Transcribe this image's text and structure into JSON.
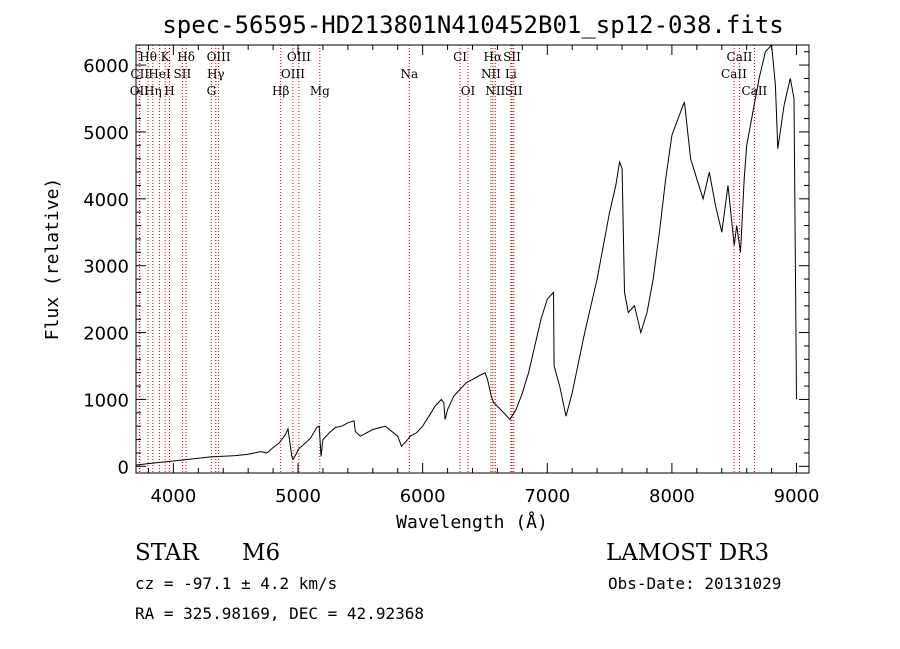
{
  "chart_data": {
    "type": "line",
    "title": "spec-56595-HD213801N410452B01_sp12-038.fits",
    "xlabel": "Wavelength (Å)",
    "ylabel": "Flux (relative)",
    "xlim": [
      3700,
      9100
    ],
    "ylim": [
      -100,
      6300
    ],
    "xticks": [
      4000,
      5000,
      6000,
      7000,
      8000,
      9000
    ],
    "yticks": [
      0,
      1000,
      2000,
      3000,
      4000,
      5000,
      6000
    ],
    "grid": false,
    "legend": "none",
    "series": [
      {
        "name": "flux",
        "x": [
          3700,
          3800,
          3900,
          4000,
          4100,
          4200,
          4300,
          4400,
          4500,
          4600,
          4700,
          4750,
          4800,
          4850,
          4900,
          4920,
          4950,
          4960,
          4990,
          5000,
          5100,
          5150,
          5170,
          5185,
          5200,
          5250,
          5300,
          5350,
          5400,
          5450,
          5460,
          5500,
          5600,
          5700,
          5800,
          5830,
          5880,
          5900,
          5950,
          6000,
          6050,
          6100,
          6150,
          6170,
          6180,
          6200,
          6250,
          6300,
          6350,
          6400,
          6450,
          6500,
          6520,
          6550,
          6570,
          6600,
          6650,
          6700,
          6750,
          6800,
          6850,
          6900,
          6950,
          7000,
          7050,
          7055,
          7100,
          7150,
          7200,
          7300,
          7400,
          7500,
          7550,
          7580,
          7600,
          7620,
          7650,
          7700,
          7750,
          7800,
          7850,
          7900,
          7950,
          8000,
          8050,
          8100,
          8150,
          8200,
          8250,
          8300,
          8350,
          8400,
          8450,
          8500,
          8520,
          8550,
          8580,
          8600,
          8650,
          8700,
          8750,
          8800,
          8830,
          8850,
          8900,
          8950,
          8980,
          9000
        ],
        "y": [
          20,
          40,
          60,
          80,
          100,
          120,
          140,
          150,
          160,
          180,
          220,
          200,
          280,
          350,
          480,
          560,
          150,
          100,
          200,
          250,
          420,
          580,
          600,
          150,
          400,
          500,
          580,
          600,
          650,
          680,
          520,
          450,
          550,
          600,
          450,
          300,
          400,
          450,
          500,
          600,
          750,
          900,
          1000,
          950,
          700,
          850,
          1050,
          1150,
          1250,
          1300,
          1350,
          1400,
          1300,
          1050,
          950,
          900,
          800,
          700,
          850,
          1100,
          1400,
          1800,
          2200,
          2500,
          2600,
          1500,
          1200,
          750,
          1100,
          2000,
          2800,
          3800,
          4200,
          4550,
          4450,
          2600,
          2300,
          2400,
          2000,
          2300,
          2800,
          3500,
          4300,
          4950,
          5200,
          5450,
          4600,
          4300,
          4000,
          4400,
          3900,
          3500,
          4200,
          3300,
          3600,
          3200,
          4300,
          4800,
          5300,
          5800,
          6200,
          6300,
          5700,
          4750,
          5400,
          5800,
          5500,
          1000
        ]
      }
    ],
    "line_ids": [
      {
        "label": "OII",
        "wavelength": 3727,
        "row": 2
      },
      {
        "label": "CII",
        "wavelength": 3730,
        "row": 1
      },
      {
        "label": "Hθ",
        "wavelength": 3797,
        "row": 0
      },
      {
        "label": "Hη",
        "wavelength": 3835,
        "row": 2
      },
      {
        "label": "HeI",
        "wavelength": 3889,
        "row": 1
      },
      {
        "label": "K",
        "wavelength": 3934,
        "row": 0
      },
      {
        "label": "H",
        "wavelength": 3969,
        "row": 2
      },
      {
        "label": "SII",
        "wavelength": 4072,
        "row": 1
      },
      {
        "label": "Hδ",
        "wavelength": 4102,
        "row": 0
      },
      {
        "label": "G",
        "wavelength": 4305,
        "row": 2
      },
      {
        "label": "Hγ",
        "wavelength": 4340,
        "row": 1
      },
      {
        "label": "OIII",
        "wavelength": 4363,
        "row": 0
      },
      {
        "label": "Hβ",
        "wavelength": 4861,
        "row": 2
      },
      {
        "label": "OIII",
        "wavelength": 4959,
        "row": 1
      },
      {
        "label": "OIII",
        "wavelength": 5007,
        "row": 0
      },
      {
        "label": "Mg",
        "wavelength": 5175,
        "row": 2
      },
      {
        "label": "Na",
        "wavelength": 5893,
        "row": 1
      },
      {
        "label": "CI",
        "wavelength": 6300,
        "row": 0
      },
      {
        "label": "OI",
        "wavelength": 6364,
        "row": 2
      },
      {
        "label": "NII",
        "wavelength": 6548,
        "row": 1
      },
      {
        "label": "Hα",
        "wavelength": 6563,
        "row": 0
      },
      {
        "label": "NII",
        "wavelength": 6583,
        "row": 2
      },
      {
        "label": "Li",
        "wavelength": 6708,
        "row": 1
      },
      {
        "label": "SII",
        "wavelength": 6717,
        "row": 0
      },
      {
        "label": "SII",
        "wavelength": 6731,
        "row": 2
      },
      {
        "label": "CaII",
        "wavelength": 8498,
        "row": 1
      },
      {
        "label": "CaII",
        "wavelength": 8542,
        "row": 0
      },
      {
        "label": "CaII",
        "wavelength": 8662,
        "row": 2
      }
    ]
  },
  "info": {
    "class": "STAR",
    "subclass": "M6",
    "survey": "LAMOST DR3",
    "cz": "cz = -97.1 ± 4.2 km/s",
    "obs_date": "Obs-Date: 20131029",
    "radec": "RA = 325.98169, DEC =  42.92368"
  },
  "colors": {
    "spectrum": "#000000",
    "line_marker": "#cc0000",
    "axes": "#000000"
  }
}
